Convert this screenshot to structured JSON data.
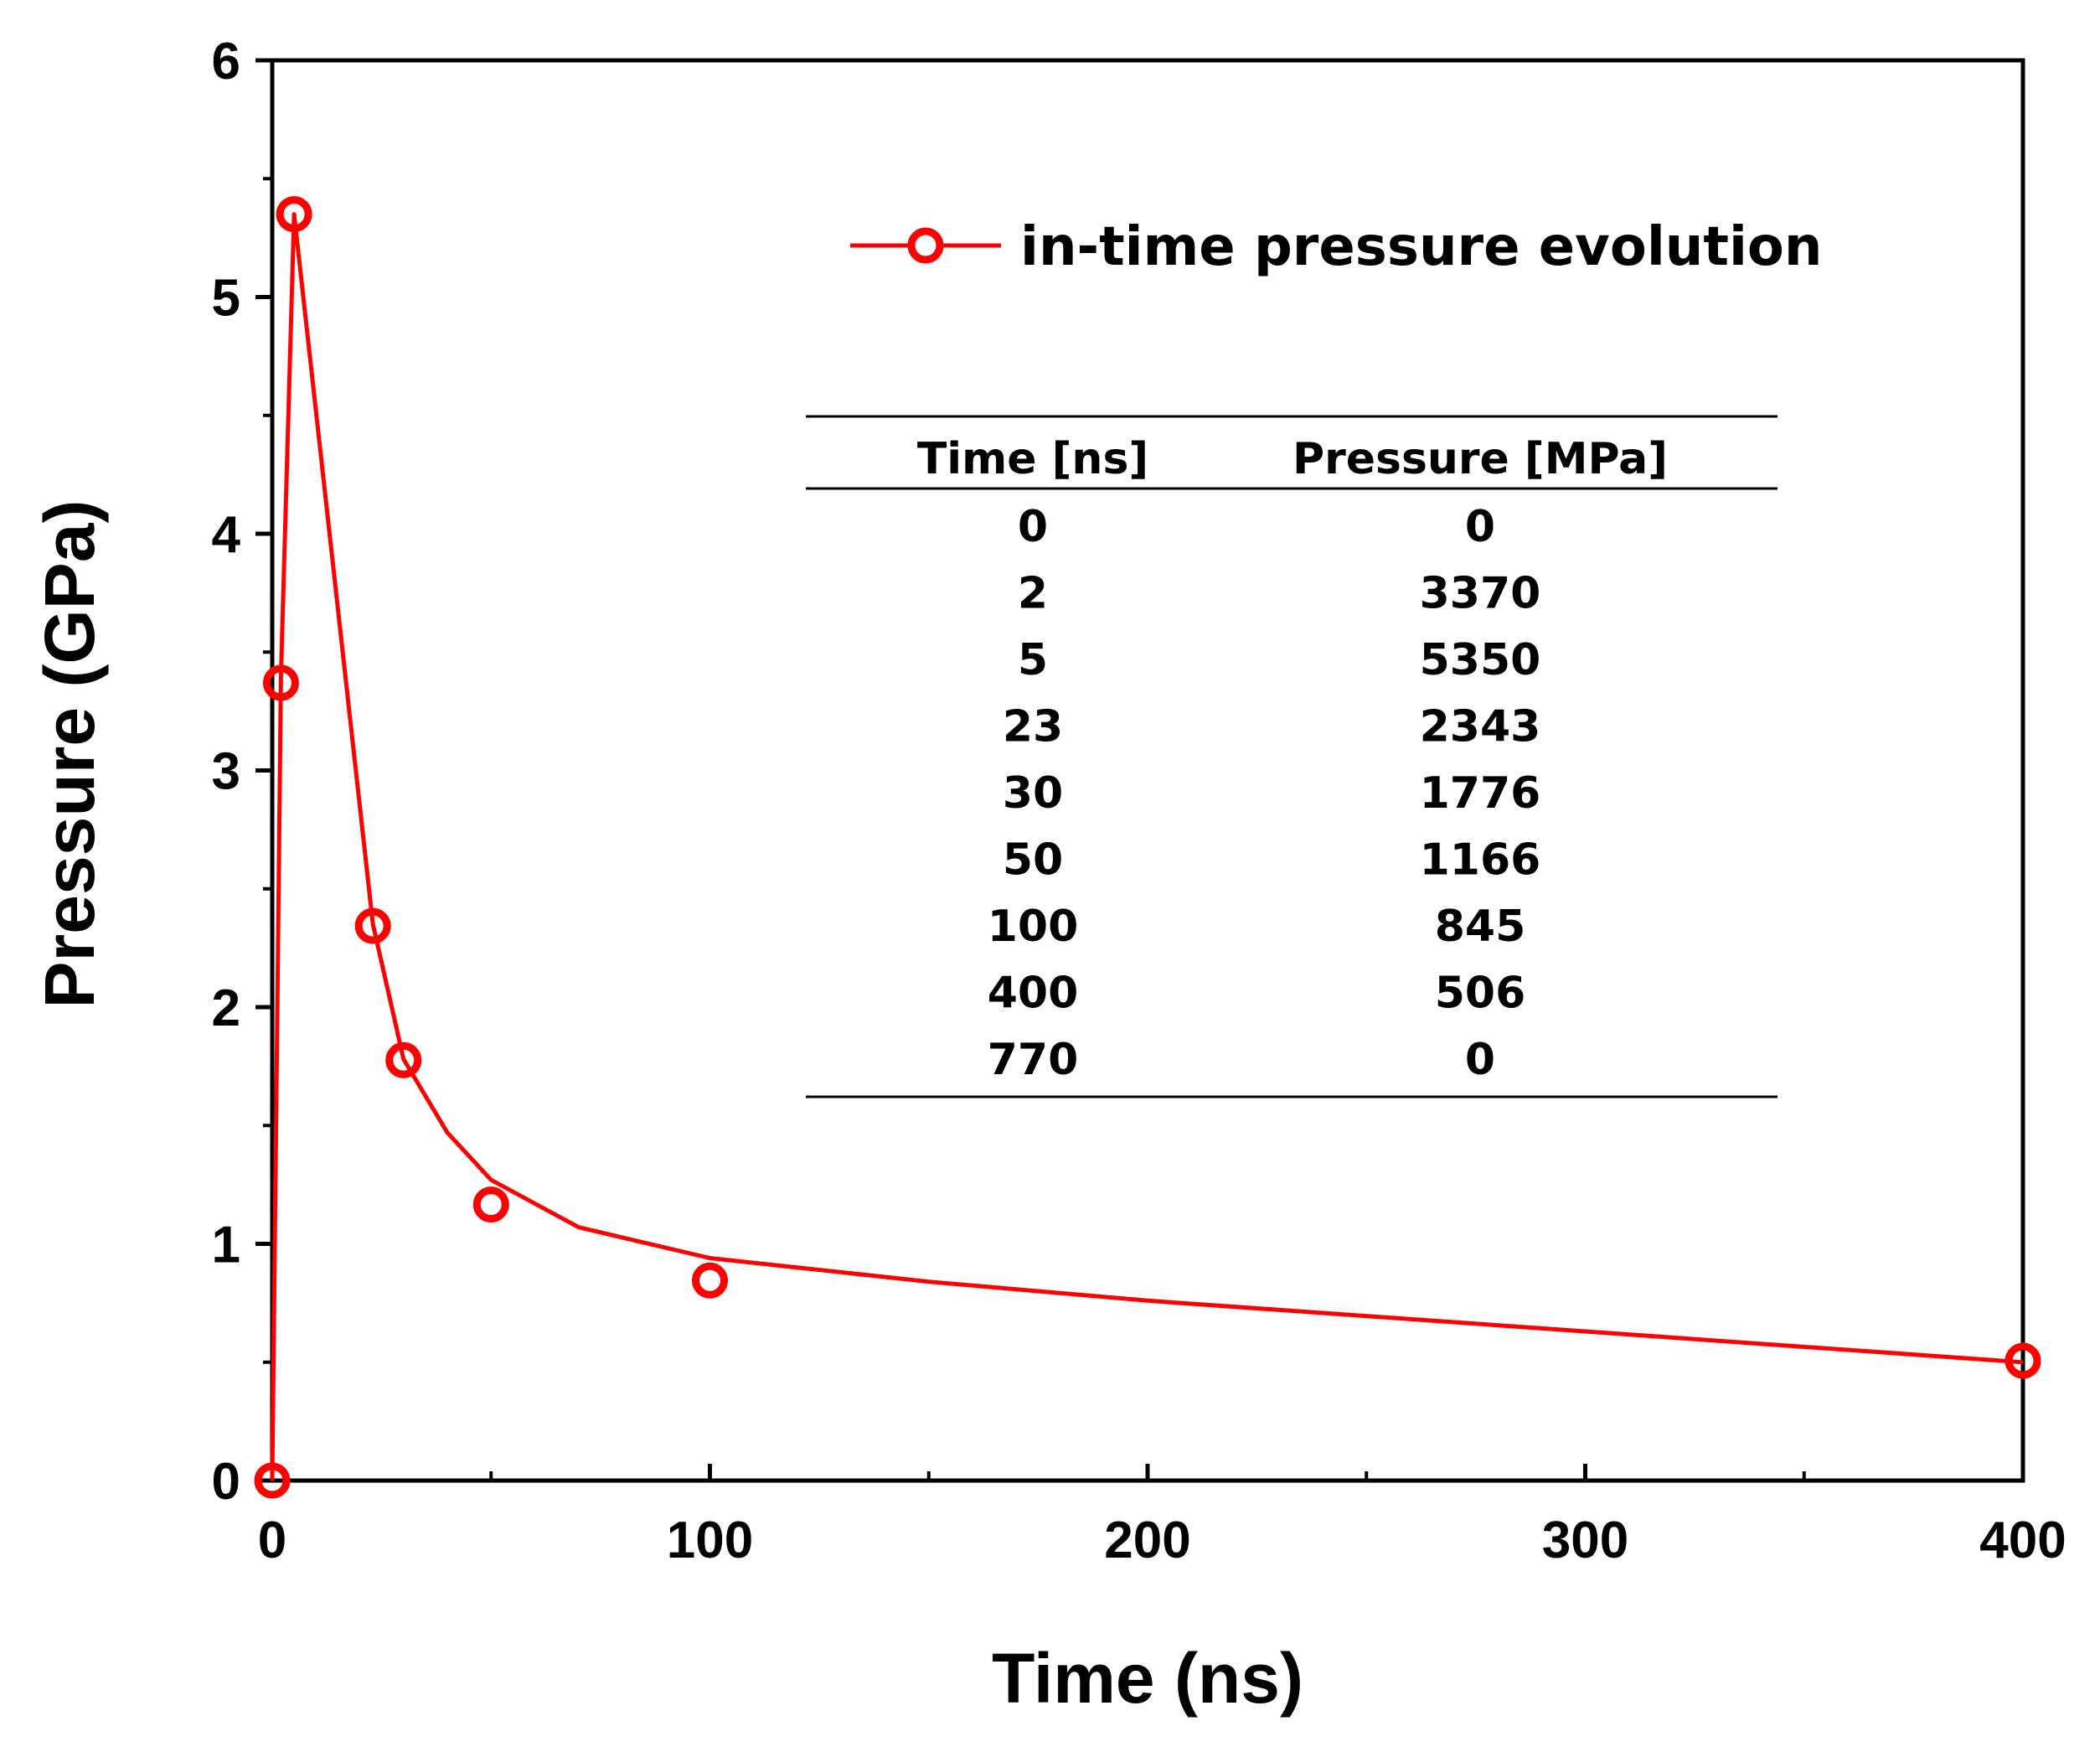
{
  "chart_data": {
    "type": "line",
    "title": "",
    "xlabel": "Time (ns)",
    "ylabel": "Pressure (GPa)",
    "xlim": [
      0,
      400
    ],
    "ylim": [
      0,
      6
    ],
    "x_ticks": [
      0,
      100,
      200,
      300,
      400
    ],
    "y_ticks": [
      0,
      1,
      2,
      3,
      4,
      5,
      6
    ],
    "x_tick_labels": [
      "0",
      "100",
      "200",
      "300",
      "400"
    ],
    "y_tick_labels": [
      "0",
      "1",
      "2",
      "3",
      "4",
      "5",
      "6"
    ],
    "color": "#ff0000",
    "series": [
      {
        "name": "in-time pressure evolution",
        "points": [
          {
            "x": 0,
            "y": 0
          },
          {
            "x": 2,
            "y": 3.37
          },
          {
            "x": 5,
            "y": 5.35
          },
          {
            "x": 23,
            "y": 2.343
          },
          {
            "x": 30,
            "y": 1.776
          },
          {
            "x": 50,
            "y": 1.166
          },
          {
            "x": 100,
            "y": 0.845
          },
          {
            "x": 400,
            "y": 0.506
          }
        ],
        "curve": [
          {
            "x": 0,
            "y": 0
          },
          {
            "x": 2,
            "y": 3.4
          },
          {
            "x": 5,
            "y": 5.35
          },
          {
            "x": 23,
            "y": 2.35
          },
          {
            "x": 30,
            "y": 1.78
          },
          {
            "x": 40,
            "y": 1.47
          },
          {
            "x": 50,
            "y": 1.27
          },
          {
            "x": 70,
            "y": 1.07
          },
          {
            "x": 100,
            "y": 0.94
          },
          {
            "x": 150,
            "y": 0.84
          },
          {
            "x": 200,
            "y": 0.76
          },
          {
            "x": 300,
            "y": 0.63
          },
          {
            "x": 400,
            "y": 0.5
          }
        ]
      }
    ],
    "legend": {
      "position": "top-right",
      "label": "in-time pressure evolution"
    },
    "inset_table": {
      "headers": [
        "Time [ns]",
        "Pressure [MPa]"
      ],
      "rows": [
        [
          "0",
          "0"
        ],
        [
          "2",
          "3370"
        ],
        [
          "5",
          "5350"
        ],
        [
          "23",
          "2343"
        ],
        [
          "30",
          "1776"
        ],
        [
          "50",
          "1166"
        ],
        [
          "100",
          "845"
        ],
        [
          "400",
          "506"
        ],
        [
          "770",
          "0"
        ]
      ]
    }
  }
}
